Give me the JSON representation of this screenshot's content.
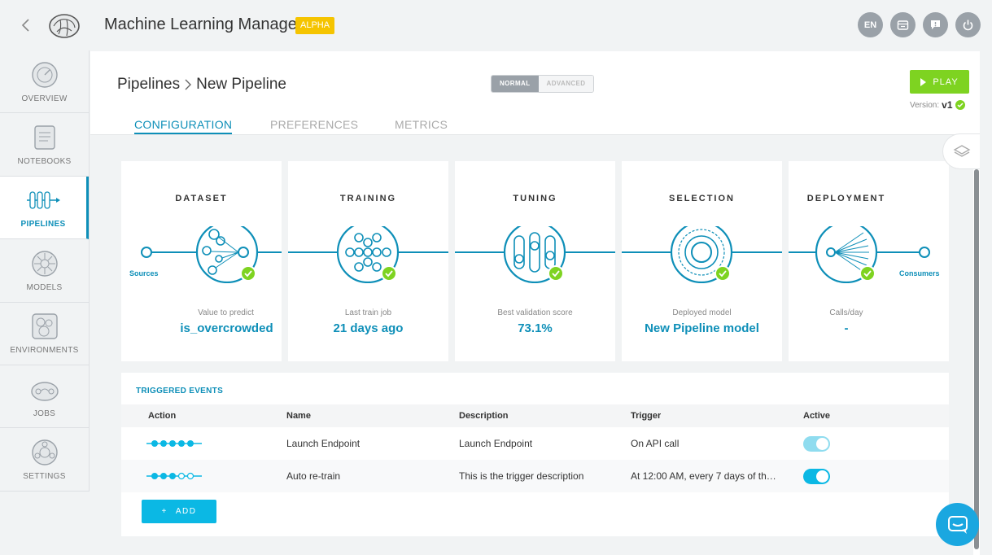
{
  "header": {
    "app_title": "Machine Learning Manager",
    "badge": "ALPHA",
    "icons": [
      {
        "name": "language-icon",
        "label": "EN"
      },
      {
        "name": "calendar-icon",
        "label": ""
      },
      {
        "name": "feedback-icon",
        "label": ""
      },
      {
        "name": "power-icon",
        "label": ""
      }
    ]
  },
  "sidebar": {
    "items": [
      {
        "label": "OVERVIEW",
        "icon": "overview-icon",
        "active": false
      },
      {
        "label": "NOTEBOOKS",
        "icon": "notebook-icon",
        "active": false
      },
      {
        "label": "PIPELINES",
        "icon": "pipeline-icon",
        "active": true
      },
      {
        "label": "MODELS",
        "icon": "models-icon",
        "active": false
      },
      {
        "label": "ENVIRONMENTS",
        "icon": "environment-icon",
        "active": false
      },
      {
        "label": "JOBS",
        "icon": "jobs-icon",
        "active": false
      },
      {
        "label": "SETTINGS",
        "icon": "settings-icon",
        "active": false
      }
    ]
  },
  "page": {
    "breadcrumb_root": "Pipelines",
    "breadcrumb_current": "New Pipeline",
    "mode_normal": "NORMAL",
    "mode_advanced": "ADVANCED",
    "play_label": "PLAY",
    "version_label": "Version:",
    "version_value": "v1",
    "tabs": [
      "CONFIGURATION",
      "PREFERENCES",
      "METRICS"
    ],
    "active_tab": "CONFIGURATION"
  },
  "stages": [
    {
      "title": "DATASET",
      "sub": "Value to predict",
      "value": "is_overcrowded",
      "end_label": "Sources"
    },
    {
      "title": "TRAINING",
      "sub": "Last train job",
      "value": "21 days ago"
    },
    {
      "title": "TUNING",
      "sub": "Best validation score",
      "value": "73.1%"
    },
    {
      "title": "SELECTION",
      "sub": "Deployed model",
      "value": "New Pipeline model"
    },
    {
      "title": "DEPLOYMENT",
      "sub": "Calls/day",
      "value": "-",
      "end_label": "Consumers"
    }
  ],
  "events": {
    "title": "TRIGGERED EVENTS",
    "columns": [
      "Action",
      "Name",
      "Description",
      "Trigger",
      "Active"
    ],
    "rows": [
      {
        "name": "Launch Endpoint",
        "description": "Launch Endpoint",
        "trigger": "On API call",
        "active": true,
        "disabled": true
      },
      {
        "name": "Auto re-train",
        "description": "This is the trigger description",
        "trigger": "At 12:00 AM, every 7 days of th…",
        "active": true,
        "disabled": false
      }
    ],
    "add_label": "ADD"
  },
  "colors": {
    "accent": "#0e8fb8",
    "success": "#7ed321",
    "alpha": "#f5c400",
    "add_button": "#0bb8e4"
  }
}
